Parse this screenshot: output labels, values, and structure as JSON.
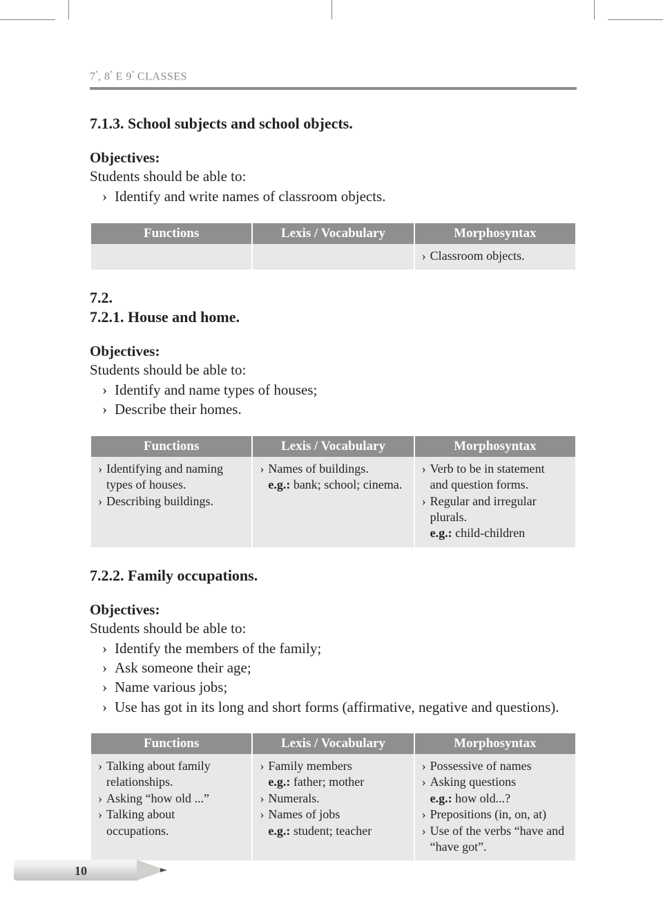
{
  "runningHead": {
    "prefix": "7",
    "midA": "ª",
    "sep1": ", 8",
    "midB": "ª",
    "sep2": " E 9",
    "midC": "ª",
    "tail": " CLASSES"
  },
  "section713": {
    "title": "7.1.3. School subjects and school objects.",
    "objectivesLabel": "Objectives:",
    "leadIn": "Students should be able to:",
    "items": [
      "Identify and write names of classroom objects."
    ]
  },
  "tableHeaders": {
    "c1": "Functions",
    "c2": "Lexis / Vocabulary",
    "c3": "Morphosyntax"
  },
  "table713": {
    "col3": [
      {
        "type": "bullet",
        "text": "Classroom objects."
      }
    ]
  },
  "section72": {
    "num": "7.2.",
    "sub": "7.2.1. House and home."
  },
  "section721": {
    "objectivesLabel": "Objectives:",
    "leadIn": "Students should be able to:",
    "items": [
      "Identify and name types of houses;",
      "Describe their homes."
    ]
  },
  "table721": {
    "col1": [
      {
        "type": "bullet",
        "text": "Identifying and naming"
      },
      {
        "type": "cont",
        "text": "types of houses."
      },
      {
        "type": "bullet",
        "text": "Describing buildings."
      }
    ],
    "col2": [
      {
        "type": "bullet",
        "text": "Names of buildings."
      },
      {
        "type": "eg",
        "label": "e.g.:",
        "text": " bank; school; cinema."
      }
    ],
    "col3": [
      {
        "type": "bullet",
        "text": "Verb to be in statement"
      },
      {
        "type": "cont",
        "text": "and question forms."
      },
      {
        "type": "bullet",
        "text": "Regular and irregular"
      },
      {
        "type": "cont",
        "text": "plurals."
      },
      {
        "type": "eg",
        "label": "e.g.:",
        "text": " child-children"
      }
    ]
  },
  "section722": {
    "title": "7.2.2. Family occupations.",
    "objectivesLabel": "Objectives:",
    "leadIn": "Students should be able to:",
    "items": [
      "Identify the members of the family;",
      "Ask someone their age;",
      "Name various jobs;",
      "Use has got in its long and short forms (affirmative, negative and questions)."
    ]
  },
  "table722": {
    "col1": [
      {
        "type": "bullet",
        "text": "Talking about family"
      },
      {
        "type": "cont",
        "text": "relationships."
      },
      {
        "type": "bullet",
        "text": "Asking “how old ...”"
      },
      {
        "type": "bullet",
        "text": "Talking about"
      },
      {
        "type": "cont",
        "text": "occupations."
      }
    ],
    "col2": [
      {
        "type": "bullet",
        "text": "Family members"
      },
      {
        "type": "eg",
        "label": "e.g.:",
        "text": " father; mother"
      },
      {
        "type": "bullet",
        "text": "Numerals."
      },
      {
        "type": "bullet",
        "text": "Names of jobs"
      },
      {
        "type": "eg",
        "label": "e.g.:",
        "text": " student; teacher"
      }
    ],
    "col3": [
      {
        "type": "bullet",
        "text": "Possessive of names"
      },
      {
        "type": "bullet",
        "text": "Asking questions"
      },
      {
        "type": "eg",
        "label": "e.g.:",
        "text": " how old...?"
      },
      {
        "type": "bullet",
        "text": "Prepositions (in, on, at)"
      },
      {
        "type": "bullet",
        "text": "Use of the verbs “have and"
      },
      {
        "type": "cont",
        "text": "“have got”."
      }
    ]
  },
  "pageNumber": "10"
}
